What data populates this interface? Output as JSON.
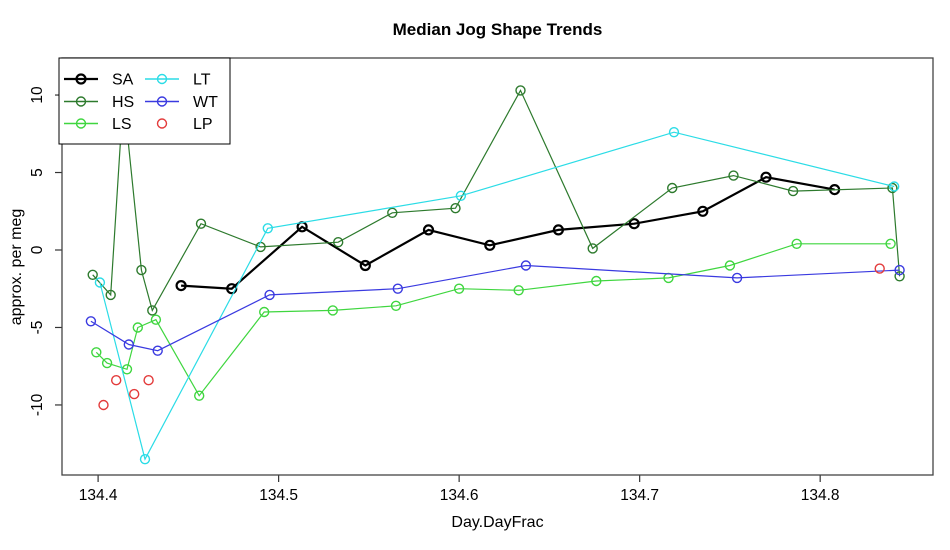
{
  "chart_data": {
    "type": "line",
    "title": "Median Jog Shape Trends",
    "xlabel": "Day.DayFrac",
    "ylabel": "approx. per meg",
    "grid": false,
    "legend_position": "top-left",
    "xlim": [
      134.38,
      134.8625
    ],
    "ylim": [
      -14.52,
      12.39
    ],
    "x_ticks": [
      {
        "value": 134.4,
        "label": "134.4"
      },
      {
        "value": 134.5,
        "label": "134.5"
      },
      {
        "value": 134.6,
        "label": "134.6"
      },
      {
        "value": 134.7,
        "label": "134.7"
      },
      {
        "value": 134.8,
        "label": "134.8"
      }
    ],
    "y_ticks": [
      {
        "value": -10,
        "label": "-10"
      },
      {
        "value": -5,
        "label": "-5"
      },
      {
        "value": 0,
        "label": "0"
      },
      {
        "value": 5,
        "label": "5"
      },
      {
        "value": 10,
        "label": "10"
      }
    ],
    "series": [
      {
        "name": "SA",
        "color": "#000000",
        "line": true,
        "line_width": 2.2,
        "points": [
          [
            134.446,
            -2.3
          ],
          [
            134.474,
            -2.5
          ],
          [
            134.513,
            1.5
          ],
          [
            134.548,
            -1.0
          ],
          [
            134.583,
            1.3
          ],
          [
            134.617,
            0.3
          ],
          [
            134.655,
            1.3
          ],
          [
            134.697,
            1.7
          ],
          [
            134.735,
            2.5
          ],
          [
            134.77,
            4.7
          ],
          [
            134.808,
            3.9
          ]
        ]
      },
      {
        "name": "HS",
        "color": "#2d7a2d",
        "line": true,
        "line_width": 1.2,
        "points": [
          [
            134.397,
            -1.6
          ],
          [
            134.407,
            -2.9
          ],
          [
            134.414,
            10.0
          ],
          [
            134.424,
            -1.3
          ],
          [
            134.43,
            -3.9
          ],
          [
            134.457,
            1.7
          ],
          [
            134.49,
            0.2
          ],
          [
            134.533,
            0.5
          ],
          [
            134.563,
            2.4
          ],
          [
            134.598,
            2.7
          ],
          [
            134.634,
            10.3
          ],
          [
            134.674,
            0.1
          ],
          [
            134.718,
            4.0
          ],
          [
            134.752,
            4.8
          ],
          [
            134.785,
            3.8
          ],
          [
            134.84,
            4.0
          ],
          [
            134.844,
            -1.7
          ]
        ]
      },
      {
        "name": "LS",
        "color": "#3fd63f",
        "line": true,
        "line_width": 1.2,
        "points": [
          [
            134.399,
            -6.6
          ],
          [
            134.405,
            -7.3
          ],
          [
            134.416,
            -7.7
          ],
          [
            134.422,
            -5.0
          ],
          [
            134.432,
            -4.5
          ],
          [
            134.456,
            -9.4
          ],
          [
            134.492,
            -4.0
          ],
          [
            134.53,
            -3.9
          ],
          [
            134.565,
            -3.6
          ],
          [
            134.6,
            -2.5
          ],
          [
            134.633,
            -2.6
          ],
          [
            134.676,
            -2.0
          ],
          [
            134.716,
            -1.8
          ],
          [
            134.75,
            -1.0
          ],
          [
            134.787,
            0.4
          ],
          [
            134.839,
            0.4
          ]
        ]
      },
      {
        "name": "LT",
        "color": "#2bdce6",
        "line": true,
        "line_width": 1.2,
        "points": [
          [
            134.401,
            -2.1
          ],
          [
            134.426,
            -13.5
          ],
          [
            134.494,
            1.4
          ],
          [
            134.601,
            3.5
          ],
          [
            134.719,
            7.6
          ],
          [
            134.841,
            4.1
          ]
        ]
      },
      {
        "name": "WT",
        "color": "#3a3ae0",
        "line": true,
        "line_width": 1.2,
        "points": [
          [
            134.396,
            -4.6
          ],
          [
            134.417,
            -6.1
          ],
          [
            134.433,
            -6.5
          ],
          [
            134.495,
            -2.9
          ],
          [
            134.566,
            -2.5
          ],
          [
            134.637,
            -1.0
          ],
          [
            134.754,
            -1.8
          ],
          [
            134.844,
            -1.3
          ]
        ]
      },
      {
        "name": "LP",
        "color": "#e33b3b",
        "line": false,
        "line_width": 1.2,
        "points": [
          [
            134.403,
            -10.0
          ],
          [
            134.41,
            -8.4
          ],
          [
            134.42,
            -9.3
          ],
          [
            134.428,
            -8.4
          ],
          [
            134.833,
            -1.2
          ]
        ]
      }
    ],
    "legend_columns": [
      [
        "SA",
        "HS",
        "LS"
      ],
      [
        "LT",
        "WT",
        "LP"
      ]
    ]
  }
}
